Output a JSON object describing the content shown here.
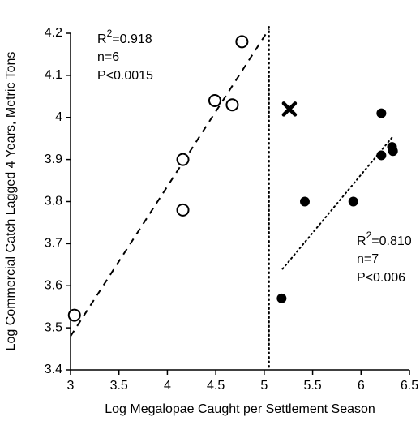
{
  "chart_data": {
    "type": "scatter",
    "x_label": "Log Megalopae Caught per Settlement Season",
    "y_label": "Log Commercial Catch Lagged 4 Years, Metric Tons",
    "xlim": [
      3,
      6.5
    ],
    "xticks": [
      3,
      3.5,
      4,
      4.5,
      5,
      5.5,
      6,
      6.5
    ],
    "ylim": [
      3.4,
      4.2
    ],
    "yticks": [
      3.4,
      3.5,
      3.6,
      3.7,
      3.8,
      3.9,
      4,
      4.1,
      4.2
    ],
    "color": "#000000",
    "series": [
      {
        "marker": "open",
        "x": [
          3.04,
          4.16,
          4.16,
          4.49,
          4.67,
          4.77
        ],
        "values": [
          3.53,
          3.9,
          3.78,
          4.04,
          4.03,
          4.18
        ]
      },
      {
        "marker": "filled",
        "x": [
          5.18,
          5.42,
          5.92,
          6.21,
          6.21,
          6.32,
          6.33
        ],
        "values": [
          3.57,
          3.8,
          3.8,
          4.01,
          3.91,
          3.93,
          3.92
        ]
      },
      {
        "marker": "cross",
        "x": [
          5.26
        ],
        "values": [
          4.02
        ]
      }
    ],
    "fit_lines": [
      {
        "style": "dashed",
        "x": [
          3,
          5.05
        ],
        "values": [
          3.48,
          4.21
        ]
      },
      {
        "style": "dotted",
        "x": [
          5.19,
          6.33
        ],
        "values": [
          3.64,
          3.955
        ]
      }
    ],
    "divider_x": 5.05,
    "annotations": [
      {
        "r_base": "R",
        "r_sup": "2",
        "r_rest": "=0.918",
        "n": "n=6",
        "p": "P<0.0015"
      },
      {
        "r_base": "R",
        "r_sup": "2",
        "r_rest": "=0.810",
        "n": "n=7",
        "p": "P<0.006"
      }
    ]
  }
}
